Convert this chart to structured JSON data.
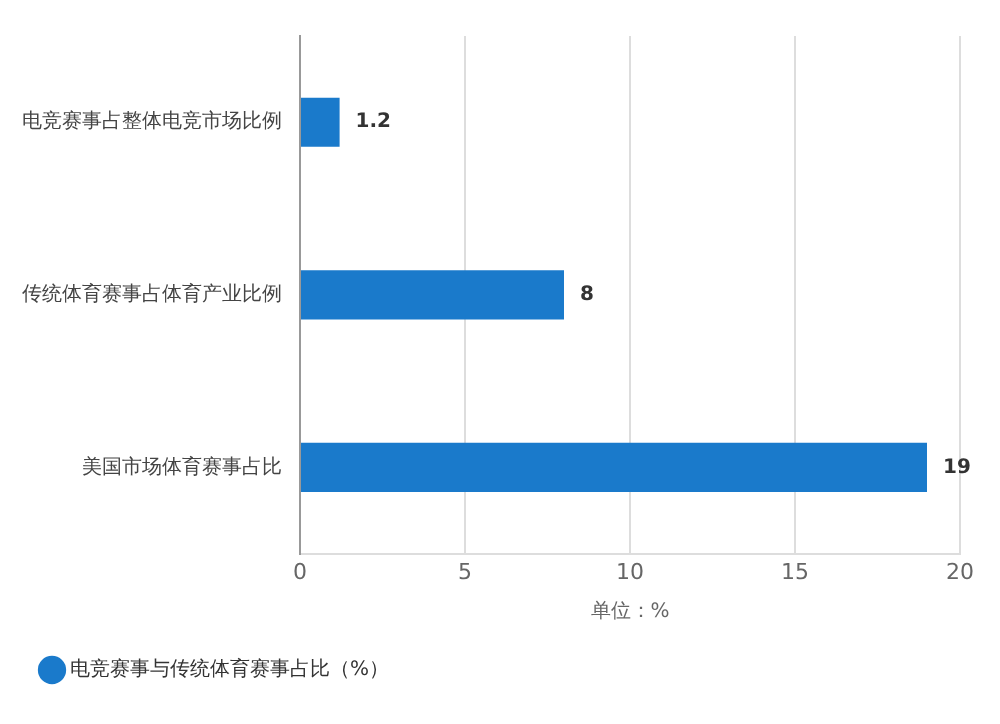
{
  "chart_data": {
    "type": "bar",
    "orientation": "horizontal",
    "xlabel": "单位：%",
    "categories": [
      "电竞赛事占整体电竞市场比例",
      "传统体育赛事占体育产业比例",
      "美国市场体育赛事占比"
    ],
    "series": [
      {
        "name": "电竞赛事与传统体育赛事占比（%）",
        "color": "#1a7acb",
        "values": [
          1.2,
          8,
          19
        ]
      }
    ],
    "xlim": [
      0,
      20
    ],
    "xticks": [
      0,
      5,
      10,
      15,
      20
    ],
    "grid": "x",
    "legend": "bottom left",
    "data_labels": true
  }
}
